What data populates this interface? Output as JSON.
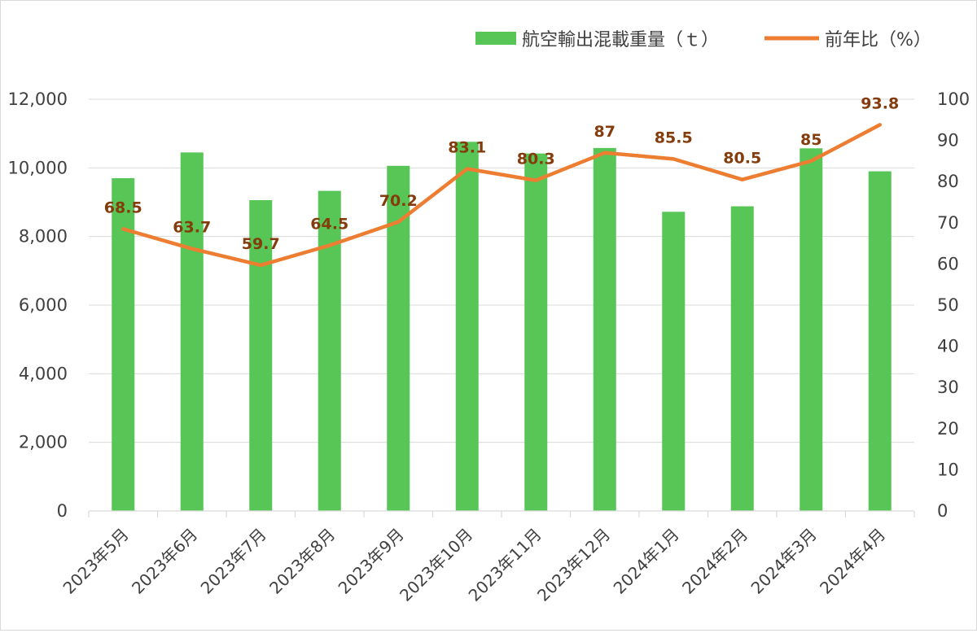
{
  "chart_data": {
    "type": "bar+line",
    "categories": [
      "2023年5月",
      "2023年6月",
      "2023年7月",
      "2023年8月",
      "2023年9月",
      "2023年10月",
      "2023年11月",
      "2023年12月",
      "2024年1月",
      "2024年2月",
      "2024年3月",
      "2024年4月"
    ],
    "series": [
      {
        "name": "航空輸出混載重量（ｔ）",
        "type": "bar",
        "axis": "left",
        "color": "#57C657",
        "values": [
          9700,
          10450,
          9060,
          9330,
          10060,
          10760,
          10420,
          10580,
          8720,
          8880,
          10570,
          9900
        ]
      },
      {
        "name": "前年比（%）",
        "type": "line",
        "axis": "right",
        "color": "#ED7D31",
        "label_color": "#843C0C",
        "values": [
          68.5,
          63.7,
          59.7,
          64.5,
          70.2,
          83.1,
          80.3,
          87,
          85.5,
          80.5,
          85,
          93.8
        ],
        "labels": [
          "68.5",
          "63.7",
          "59.7",
          "64.5",
          "70.2",
          "83.1",
          "80.3",
          "87",
          "85.5",
          "80.5",
          "85",
          "93.8"
        ]
      }
    ],
    "y_left": {
      "ylim": [
        0,
        12000
      ],
      "ticks": [
        "0",
        "2,000",
        "4,000",
        "6,000",
        "8,000",
        "10,000",
        "12,000"
      ]
    },
    "y_right": {
      "ylim": [
        0,
        100
      ],
      "ticks": [
        "0",
        "10",
        "20",
        "30",
        "40",
        "50",
        "60",
        "70",
        "80",
        "90",
        "100"
      ]
    },
    "grid": true,
    "legend_position": "top-right",
    "gridline_color": "#d9d9d9",
    "axis_text_color": "#404040"
  }
}
